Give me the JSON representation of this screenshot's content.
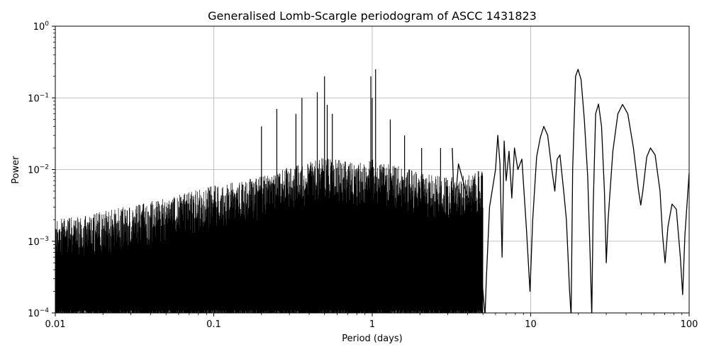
{
  "chart_data": {
    "type": "line",
    "title": "Generalised Lomb-Scargle periodogram of ASCC 1431823",
    "xlabel": "Period (days)",
    "ylabel": "Power",
    "xscale": "log",
    "yscale": "log",
    "xlim": [
      0.01,
      100
    ],
    "ylim": [
      0.0001,
      1
    ],
    "grid": "major",
    "x_ticks": [
      {
        "value": 0.01,
        "label": "0.01"
      },
      {
        "value": 0.1,
        "label": "0.1"
      },
      {
        "value": 1,
        "label": "1"
      },
      {
        "value": 10,
        "label": "10"
      },
      {
        "value": 100,
        "label": "100"
      }
    ],
    "y_ticks": [
      {
        "value": 0.0001,
        "base": "10",
        "exp": "−4"
      },
      {
        "value": 0.001,
        "base": "10",
        "exp": "−3"
      },
      {
        "value": 0.01,
        "base": "10",
        "exp": "−2"
      },
      {
        "value": 0.1,
        "base": "10",
        "exp": "−1"
      },
      {
        "value": 1,
        "base": "10",
        "exp": "0"
      }
    ],
    "line_color": "#000000",
    "noise_envelope": {
      "period": [
        0.01,
        0.02,
        0.05,
        0.1,
        0.2,
        0.3,
        0.5,
        0.8,
        1.0,
        1.5,
        2.0,
        3.0,
        5.0
      ],
      "upper_power": [
        0.002,
        0.0026,
        0.004,
        0.006,
        0.008,
        0.011,
        0.015,
        0.012,
        0.014,
        0.011,
        0.009,
        0.008,
        0.01
      ]
    },
    "peaks": {
      "period": [
        0.2,
        0.25,
        0.33,
        0.36,
        0.45,
        0.5,
        0.52,
        0.56,
        0.98,
        1.0,
        1.05,
        1.3,
        1.6,
        2.05,
        2.7
      ],
      "power": [
        0.04,
        0.07,
        0.06,
        0.1,
        0.12,
        0.2,
        0.08,
        0.06,
        0.2,
        0.1,
        0.25,
        0.05,
        0.03,
        0.02,
        0.02
      ]
    },
    "smooth_curve": {
      "period": [
        3.2,
        3.3,
        3.5,
        4.0,
        4.6,
        5.0,
        5.15,
        5.25,
        5.5,
        6.0,
        6.2,
        6.4,
        6.6,
        6.8,
        7.0,
        7.3,
        7.6,
        7.9,
        8.3,
        8.8,
        9.4,
        9.9,
        10.3,
        10.9,
        11.5,
        12.1,
        12.8,
        13.6,
        14.2,
        14.7,
        15.3,
        16.2,
        16.8,
        17.6,
        18.0,
        18.4,
        19.2,
        19.9,
        20.8,
        21.8,
        22.9,
        23.8,
        24.3,
        24.8,
        25.7,
        26.8,
        28.0,
        29.2,
        30.0,
        30.8,
        33.0,
        35.5,
        38.0,
        41.0,
        44.5,
        48.0,
        49.5,
        51.0,
        54.0,
        57.0,
        61.0,
        65.5,
        68.0,
        70.5,
        73.5,
        78.0,
        83.0,
        88.0,
        91.0,
        94.0,
        100.0
      ],
      "power": [
        0.02,
        0.0025,
        0.012,
        0.004,
        0.002,
        0.0002,
        9e-05,
        0.0003,
        0.003,
        0.01,
        0.03,
        0.012,
        0.0006,
        0.025,
        0.007,
        0.018,
        0.004,
        0.02,
        0.01,
        0.014,
        0.0015,
        0.0002,
        0.002,
        0.015,
        0.028,
        0.04,
        0.03,
        0.01,
        0.005,
        0.014,
        0.016,
        0.0047,
        0.002,
        0.0002,
        9e-05,
        0.01,
        0.2,
        0.25,
        0.18,
        0.05,
        0.008,
        0.0005,
        9e-05,
        0.003,
        0.06,
        0.082,
        0.04,
        0.005,
        0.0005,
        0.002,
        0.018,
        0.06,
        0.081,
        0.06,
        0.02,
        0.005,
        0.0032,
        0.005,
        0.015,
        0.02,
        0.016,
        0.005,
        0.0012,
        0.0005,
        0.0016,
        0.0033,
        0.0028,
        0.0006,
        0.00018,
        0.0012,
        0.009
      ]
    }
  }
}
